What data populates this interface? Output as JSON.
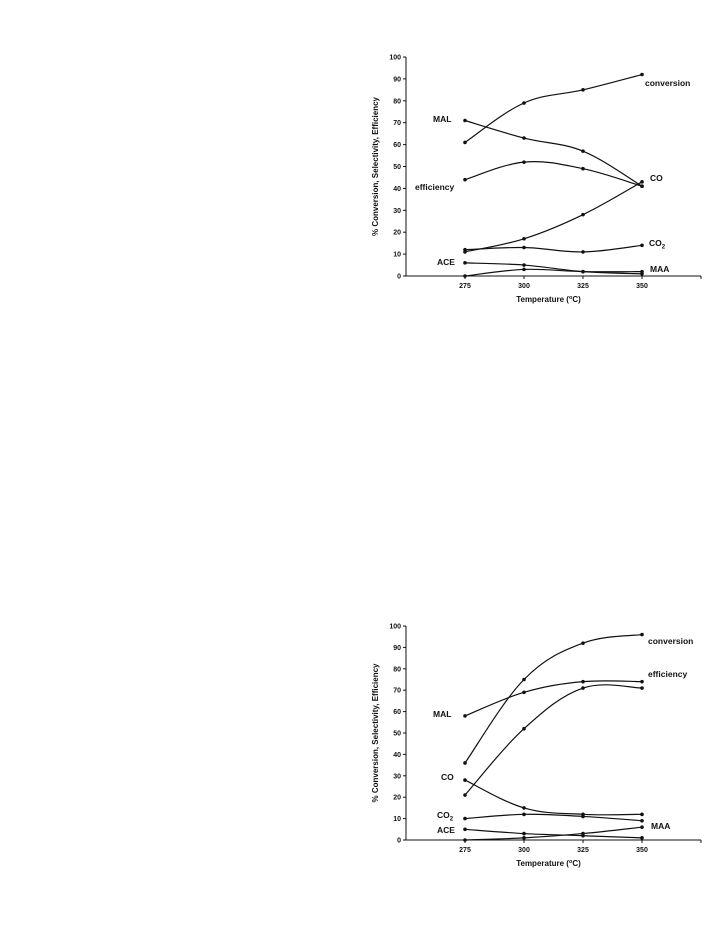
{
  "chart_data": [
    {
      "type": "line",
      "title": "",
      "xlabel": "Temperature (°C)",
      "ylabel": "% Conversion, Selectivity, Efficiency",
      "x": [
        275,
        300,
        325,
        350
      ],
      "xlim": [
        250,
        375
      ],
      "ylim": [
        0,
        100
      ],
      "xticks": [
        275,
        300,
        325,
        350
      ],
      "yticks": [
        0,
        10,
        20,
        30,
        40,
        50,
        60,
        70,
        80,
        90,
        100
      ],
      "grid": false,
      "series": [
        {
          "name": "conversion",
          "values": [
            61,
            79,
            85,
            92
          ]
        },
        {
          "name": "MAL",
          "values": [
            71,
            63,
            57,
            41
          ]
        },
        {
          "name": "efficiency",
          "values": [
            44,
            52,
            49,
            41
          ]
        },
        {
          "name": "CO",
          "values": [
            11,
            17,
            28,
            43
          ]
        },
        {
          "name": "CO2",
          "values": [
            12,
            13,
            11,
            14
          ]
        },
        {
          "name": "ACE",
          "values": [
            6,
            5,
            2,
            1
          ]
        },
        {
          "name": "MAA",
          "values": [
            0,
            3,
            2,
            2
          ]
        }
      ]
    },
    {
      "type": "line",
      "title": "",
      "xlabel": "Temperature (°C)",
      "ylabel": "% Conversion, Selectivity, Efficiency",
      "x": [
        275,
        300,
        325,
        350
      ],
      "xlim": [
        250,
        375
      ],
      "ylim": [
        0,
        100
      ],
      "xticks": [
        275,
        300,
        325,
        350
      ],
      "yticks": [
        0,
        10,
        20,
        30,
        40,
        50,
        60,
        70,
        80,
        90,
        100
      ],
      "grid": false,
      "series": [
        {
          "name": "conversion",
          "values": [
            36,
            75,
            92,
            96
          ]
        },
        {
          "name": "MAL",
          "values": [
            58,
            69,
            74,
            74
          ]
        },
        {
          "name": "efficiency",
          "values": [
            21,
            52,
            71,
            71
          ]
        },
        {
          "name": "CO",
          "values": [
            28,
            15,
            12,
            12
          ]
        },
        {
          "name": "CO2",
          "values": [
            10,
            12,
            11,
            9
          ]
        },
        {
          "name": "ACE",
          "values": [
            5,
            3,
            2,
            1
          ]
        },
        {
          "name": "MAA",
          "values": [
            0,
            1,
            3,
            6
          ]
        }
      ]
    }
  ],
  "labels": {
    "conversion": "conversion",
    "MAL": "MAL",
    "efficiency": "efficiency",
    "CO": "CO",
    "CO2_main": "CO",
    "CO2_sub": "2",
    "ACE": "ACE",
    "MAA": "MAA",
    "xlabel_main": "Temperature (",
    "xlabel_sup": "o",
    "xlabel_end": "C)",
    "ylabel": "% Conversion, Selectivity, Efficiency"
  }
}
